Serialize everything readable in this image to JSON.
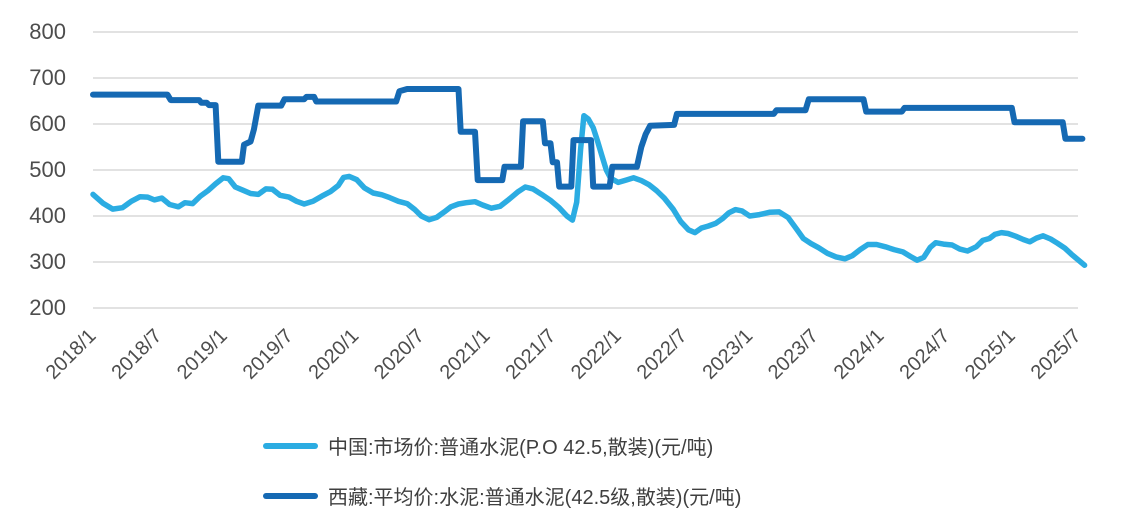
{
  "page": {
    "background": "#ffffff"
  },
  "chart_data": {
    "type": "line",
    "title": "",
    "unit": "元/吨",
    "legend_position": "bottom",
    "grid": true,
    "grid_color": "#d8d8d8",
    "axis_label_color": "#4d4d4d",
    "y_axis": {
      "min": 200,
      "max": 800,
      "tick_step": 100,
      "tick_labels": [
        "800",
        "700",
        "600",
        "500",
        "400",
        "300",
        "200"
      ]
    },
    "x_axis": {
      "tick_labels": [
        "2018/1",
        "2018/7",
        "2019/1",
        "2019/7",
        "2020/1",
        "2020/7",
        "2021/1",
        "2021/7",
        "2022/1",
        "2022/7",
        "2023/1",
        "2023/7",
        "2024/1",
        "2024/7",
        "2025/1",
        "2025/7"
      ],
      "x_unit": "months_since_2018_01",
      "tick_month_positions": [
        0,
        6,
        12,
        18,
        24,
        30,
        36,
        42,
        48,
        54,
        60,
        66,
        72,
        78,
        84,
        90
      ]
    },
    "series": [
      {
        "name": "中国:市场价:普通水泥(P.O 42.5,散装)(元/吨)",
        "color": "#2bace2",
        "stroke_width": 5.5,
        "points": [
          [
            0,
            447
          ],
          [
            0.9,
            428
          ],
          [
            1.8,
            415
          ],
          [
            2.7,
            418
          ],
          [
            3.5,
            432
          ],
          [
            4.3,
            442
          ],
          [
            5,
            441
          ],
          [
            5.6,
            435
          ],
          [
            6.3,
            439
          ],
          [
            7,
            425
          ],
          [
            7.8,
            420
          ],
          [
            8.4,
            429
          ],
          [
            9.1,
            427
          ],
          [
            9.8,
            443
          ],
          [
            10.5,
            455
          ],
          [
            11.2,
            470
          ],
          [
            11.9,
            483
          ],
          [
            12.4,
            481
          ],
          [
            13,
            463
          ],
          [
            13.7,
            456
          ],
          [
            14.4,
            449
          ],
          [
            15.1,
            447
          ],
          [
            15.8,
            459
          ],
          [
            16.4,
            458
          ],
          [
            17.1,
            445
          ],
          [
            17.9,
            441
          ],
          [
            18.6,
            432
          ],
          [
            19.3,
            426
          ],
          [
            20.1,
            432
          ],
          [
            20.9,
            443
          ],
          [
            21.7,
            453
          ],
          [
            22.4,
            466
          ],
          [
            22.9,
            484
          ],
          [
            23.4,
            486
          ],
          [
            24.1,
            479
          ],
          [
            24.8,
            461
          ],
          [
            25.6,
            450
          ],
          [
            26.4,
            446
          ],
          [
            27.1,
            440
          ],
          [
            27.9,
            432
          ],
          [
            28.7,
            427
          ],
          [
            29.4,
            414
          ],
          [
            30,
            400
          ],
          [
            30.7,
            392
          ],
          [
            31.4,
            397
          ],
          [
            32.1,
            409
          ],
          [
            32.7,
            420
          ],
          [
            33.4,
            426
          ],
          [
            34.1,
            429
          ],
          [
            34.9,
            431
          ],
          [
            35.6,
            424
          ],
          [
            36.4,
            417
          ],
          [
            37.2,
            421
          ],
          [
            38,
            436
          ],
          [
            38.8,
            452
          ],
          [
            39.5,
            463
          ],
          [
            40.2,
            459
          ],
          [
            41,
            447
          ],
          [
            41.8,
            434
          ],
          [
            42.6,
            418
          ],
          [
            43.3,
            400
          ],
          [
            43.8,
            391
          ],
          [
            44.2,
            430
          ],
          [
            44.55,
            545
          ],
          [
            44.85,
            618
          ],
          [
            45.25,
            611
          ],
          [
            45.7,
            592
          ],
          [
            46.1,
            563
          ],
          [
            46.5,
            531
          ],
          [
            46.9,
            500
          ],
          [
            47.3,
            482
          ],
          [
            48,
            473
          ],
          [
            48.7,
            478
          ],
          [
            49.4,
            483
          ],
          [
            50.1,
            477
          ],
          [
            50.8,
            468
          ],
          [
            51.5,
            455
          ],
          [
            52.2,
            439
          ],
          [
            53,
            415
          ],
          [
            53.7,
            388
          ],
          [
            54.4,
            370
          ],
          [
            55,
            364
          ],
          [
            55.6,
            374
          ],
          [
            56.2,
            378
          ],
          [
            56.9,
            384
          ],
          [
            57.5,
            394
          ],
          [
            58.1,
            407
          ],
          [
            58.7,
            414
          ],
          [
            59.3,
            411
          ],
          [
            60,
            400
          ],
          [
            60.9,
            403
          ],
          [
            61.8,
            408
          ],
          [
            62.7,
            409
          ],
          [
            63.5,
            397
          ],
          [
            64.3,
            371
          ],
          [
            64.9,
            351
          ],
          [
            65.6,
            340
          ],
          [
            66.3,
            331
          ],
          [
            67.1,
            319
          ],
          [
            67.9,
            311
          ],
          [
            68.7,
            307
          ],
          [
            69.4,
            314
          ],
          [
            70.1,
            327
          ],
          [
            70.8,
            338
          ],
          [
            71.6,
            338
          ],
          [
            72.4,
            333
          ],
          [
            73.2,
            327
          ],
          [
            74,
            322
          ],
          [
            74.7,
            312
          ],
          [
            75.3,
            304
          ],
          [
            75.9,
            310
          ],
          [
            76.5,
            332
          ],
          [
            77,
            342
          ],
          [
            77.7,
            339
          ],
          [
            78.5,
            337
          ],
          [
            79.2,
            328
          ],
          [
            79.9,
            324
          ],
          [
            80.7,
            333
          ],
          [
            81.3,
            347
          ],
          [
            81.9,
            351
          ],
          [
            82.4,
            360
          ],
          [
            83,
            364
          ],
          [
            83.6,
            362
          ],
          [
            84.3,
            356
          ],
          [
            85,
            349
          ],
          [
            85.6,
            344
          ],
          [
            86.2,
            352
          ],
          [
            86.8,
            357
          ],
          [
            87.5,
            350
          ],
          [
            88.1,
            341
          ],
          [
            88.8,
            330
          ],
          [
            89.4,
            317
          ],
          [
            90,
            305
          ],
          [
            90.6,
            293
          ]
        ]
      },
      {
        "name": "西藏:平均价:水泥:普通水泥(42.5级,散装)(元/吨)",
        "color": "#1569b3",
        "stroke_width": 6,
        "points": [
          [
            0,
            664
          ],
          [
            6.8,
            664
          ],
          [
            7.1,
            652
          ],
          [
            9.7,
            652
          ],
          [
            9.9,
            646
          ],
          [
            10.4,
            646
          ],
          [
            10.6,
            641
          ],
          [
            11.2,
            641
          ],
          [
            11.45,
            518
          ],
          [
            13.6,
            518
          ],
          [
            13.8,
            555
          ],
          [
            14.4,
            562
          ],
          [
            14.7,
            588
          ],
          [
            15.1,
            640
          ],
          [
            17.2,
            640
          ],
          [
            17.5,
            654
          ],
          [
            19.3,
            654
          ],
          [
            19.5,
            659
          ],
          [
            20.2,
            659
          ],
          [
            20.4,
            649
          ],
          [
            27.7,
            649
          ],
          [
            28,
            671
          ],
          [
            28.7,
            676
          ],
          [
            33.4,
            676
          ],
          [
            33.6,
            583
          ],
          [
            34.9,
            583
          ],
          [
            35.15,
            478
          ],
          [
            37.4,
            478
          ],
          [
            37.6,
            507
          ],
          [
            39.1,
            507
          ],
          [
            39.3,
            606
          ],
          [
            41.1,
            606
          ],
          [
            41.3,
            558
          ],
          [
            41.8,
            558
          ],
          [
            42,
            517
          ],
          [
            42.4,
            517
          ],
          [
            42.6,
            464
          ],
          [
            43.7,
            464
          ],
          [
            43.9,
            565
          ],
          [
            45.5,
            565
          ],
          [
            45.7,
            464
          ],
          [
            47.2,
            464
          ],
          [
            47.45,
            507
          ],
          [
            49.7,
            507
          ],
          [
            50.1,
            550
          ],
          [
            50.5,
            578
          ],
          [
            50.9,
            596
          ],
          [
            53.1,
            598
          ],
          [
            53.35,
            622
          ],
          [
            62.2,
            622
          ],
          [
            62.45,
            630
          ],
          [
            65.1,
            630
          ],
          [
            65.4,
            654
          ],
          [
            70.4,
            654
          ],
          [
            70.65,
            627
          ],
          [
            73.9,
            627
          ],
          [
            74.15,
            635
          ],
          [
            83.95,
            635
          ],
          [
            84.2,
            604
          ],
          [
            88.6,
            604
          ],
          [
            88.85,
            568
          ],
          [
            90.4,
            568
          ]
        ]
      }
    ]
  }
}
